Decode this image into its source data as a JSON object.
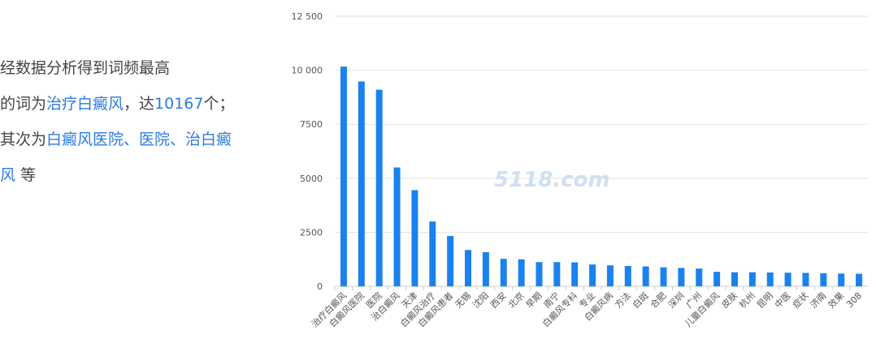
{
  "summary": {
    "line1": "经数据分析得到词频最高",
    "line2_prefix": "的词为",
    "top_word": "治疗白癜风",
    "line2_mid": "，达",
    "top_count": "10167",
    "line2_suffix": "个；",
    "line3_prefix": "其次为",
    "second_words": "白癜风医院、医院、治白癜",
    "line4_word_tail": "风",
    "line4_suffix": "等"
  },
  "watermark": "5118.com",
  "colors": {
    "bar": "#1a82ee",
    "highlight": "#2b7be0",
    "grid": "#e2e2e2",
    "text": "#444444"
  },
  "chart_data": {
    "type": "bar",
    "categories": [
      "治疗白癜风",
      "白癜风医院",
      "医院",
      "治白癜风",
      "天津",
      "白癜风治疗",
      "白癜风患者",
      "无锡",
      "沈阳",
      "西安",
      "北京",
      "早期",
      "南宁",
      "白癜风专科",
      "专业",
      "白癜风病",
      "方法",
      "白斑",
      "合肥",
      "深圳",
      "广州",
      "儿童白癜风",
      "皮肤",
      "杭州",
      "昆明",
      "中医",
      "症状",
      "济南",
      "效果",
      "308"
    ],
    "values": [
      10167,
      9480,
      9100,
      5500,
      4450,
      3000,
      2330,
      1680,
      1580,
      1270,
      1250,
      1120,
      1120,
      1110,
      1010,
      970,
      940,
      920,
      880,
      850,
      820,
      670,
      650,
      650,
      640,
      630,
      620,
      600,
      590,
      580
    ],
    "ylim": [
      0,
      12500
    ],
    "yticks": [
      0,
      2500,
      5000,
      7500,
      10000,
      12500
    ],
    "ytick_labels": [
      "0",
      "2500",
      "5000",
      "7500",
      "10 000",
      "12 500"
    ],
    "grid": true,
    "title": "",
    "xlabel": "",
    "ylabel": ""
  }
}
